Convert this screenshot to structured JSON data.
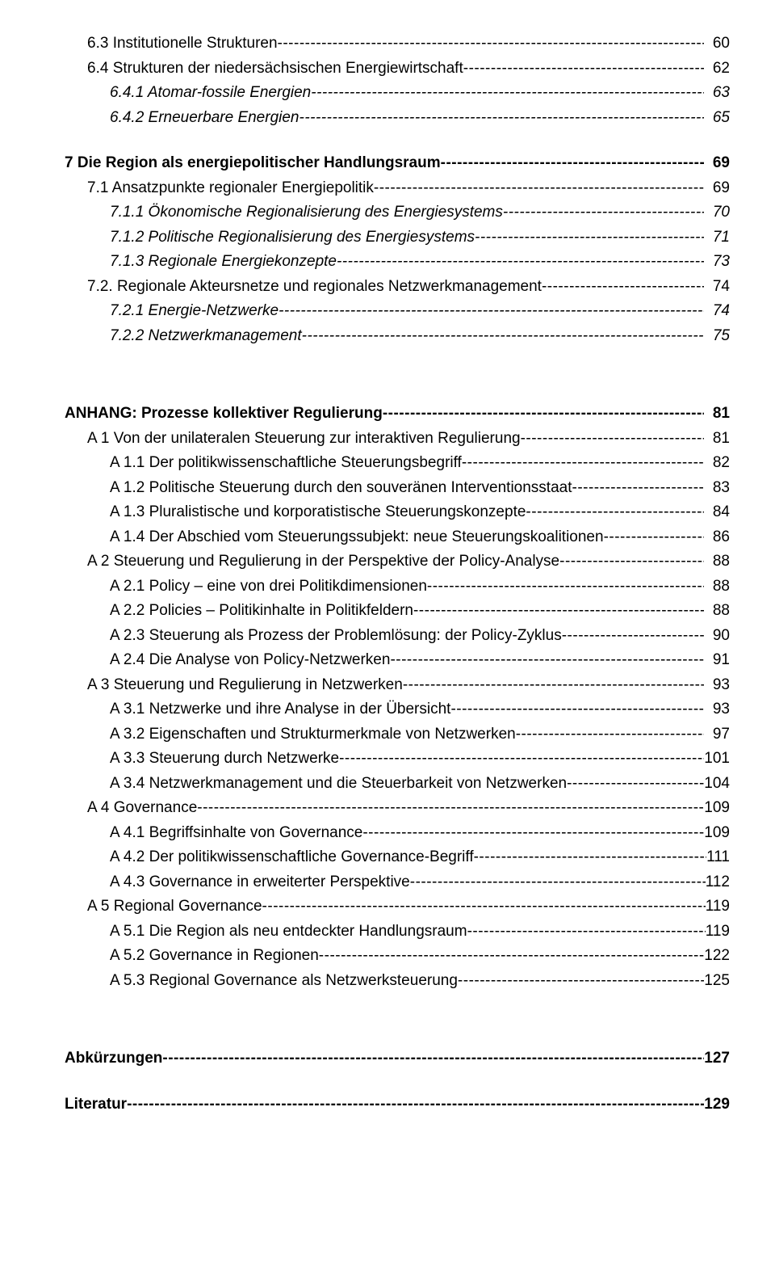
{
  "entries": [
    {
      "level": "l1",
      "style": "",
      "label": "6.3  Institutionelle Strukturen",
      "page": "60",
      "gap": ""
    },
    {
      "level": "l1",
      "style": "",
      "label": "6.4  Strukturen der niedersächsischen Energiewirtschaft",
      "page": "62",
      "gap": ""
    },
    {
      "level": "l2",
      "style": "italic",
      "label": "6.4.1 Atomar-fossile Energien",
      "page": "63",
      "gap": ""
    },
    {
      "level": "l2",
      "style": "italic",
      "label": "6.4.2 Erneuerbare Energien",
      "page": "65",
      "gap": ""
    },
    {
      "level": "l0",
      "style": "bold",
      "label": "7   Die Region als energiepolitischer Handlungsraum",
      "page": "69",
      "gap": "gap"
    },
    {
      "level": "l1",
      "style": "",
      "label": "7.1  Ansatzpunkte regionaler Energiepolitik",
      "page": "69",
      "gap": ""
    },
    {
      "level": "l2",
      "style": "italic",
      "label": "7.1.1 Ökonomische Regionalisierung des Energiesystems",
      "page": "70",
      "gap": ""
    },
    {
      "level": "l2",
      "style": "italic",
      "label": "7.1.2 Politische Regionalisierung des Energiesystems",
      "page": "71",
      "gap": ""
    },
    {
      "level": "l2",
      "style": "italic",
      "label": "7.1.3 Regionale Energiekonzepte",
      "page": "73",
      "gap": ""
    },
    {
      "level": "l1",
      "style": "",
      "label": "7.2.  Regionale Akteursnetze und regionales Netzwerkmanagement",
      "page": "74",
      "gap": ""
    },
    {
      "level": "l2",
      "style": "italic",
      "label": "7.2.1 Energie-Netzwerke",
      "page": "74",
      "gap": ""
    },
    {
      "level": "l2",
      "style": "italic",
      "label": "7.2.2 Netzwerkmanagement",
      "page": "75",
      "gap": ""
    },
    {
      "level": "l0",
      "style": "bold",
      "label": "ANHANG:  Prozesse kollektiver Regulierung",
      "page": "81",
      "gap": "big-gap"
    },
    {
      "level": "l1",
      "style": "",
      "label": "A 1  Von der unilateralen Steuerung zur interaktiven Regulierung",
      "page": "81",
      "gap": ""
    },
    {
      "level": "l2",
      "style": "",
      "label": "A 1.1  Der politikwissenschaftliche Steuerungsbegriff",
      "page": "82",
      "gap": ""
    },
    {
      "level": "l2",
      "style": "",
      "label": "A 1.2  Politische Steuerung durch den souveränen Interventionsstaat",
      "page": "83",
      "gap": ""
    },
    {
      "level": "l2",
      "style": "",
      "label": "A 1.3  Pluralistische und korporatistische Steuerungskonzepte",
      "page": "84",
      "gap": ""
    },
    {
      "level": "l2",
      "style": "",
      "label": "A 1.4  Der Abschied vom Steuerungssubjekt: neue Steuerungskoalitionen",
      "page": "86",
      "gap": ""
    },
    {
      "level": "l1",
      "style": "",
      "label": "A 2  Steuerung und Regulierung in der Perspektive der Policy-Analyse",
      "page": "88",
      "gap": ""
    },
    {
      "level": "l2",
      "style": "",
      "label": "A 2.1  Policy – eine von drei Politikdimensionen",
      "page": "88",
      "gap": ""
    },
    {
      "level": "l2",
      "style": "",
      "label": "A 2.2  Policies – Politikinhalte in Politikfeldern",
      "page": "88",
      "gap": ""
    },
    {
      "level": "l2",
      "style": "",
      "label": "A 2.3  Steuerung als Prozess der Problemlösung: der Policy-Zyklus",
      "page": "90",
      "gap": ""
    },
    {
      "level": "l2",
      "style": "",
      "label": "A 2.4  Die Analyse von Policy-Netzwerken",
      "page": "91",
      "gap": ""
    },
    {
      "level": "l1",
      "style": "",
      "label": "A 3  Steuerung und Regulierung in Netzwerken",
      "page": "93",
      "gap": ""
    },
    {
      "level": "l2",
      "style": "",
      "label": "A 3.1  Netzwerke und ihre Analyse in der Übersicht",
      "page": "93",
      "gap": ""
    },
    {
      "level": "l2",
      "style": "",
      "label": "A 3.2  Eigenschaften und Strukturmerkmale von Netzwerken",
      "page": "97",
      "gap": ""
    },
    {
      "level": "l2",
      "style": "",
      "label": "A 3.3  Steuerung durch Netzwerke",
      "page": "101",
      "gap": ""
    },
    {
      "level": "l2",
      "style": "",
      "label": "A 3.4  Netzwerkmanagement und die Steuerbarkeit von Netzwerken",
      "page": "104",
      "gap": ""
    },
    {
      "level": "l1",
      "style": "",
      "label": "A 4  Governance",
      "page": "109",
      "gap": ""
    },
    {
      "level": "l2",
      "style": "",
      "label": "A 4.1  Begriffsinhalte von Governance",
      "page": "109",
      "gap": ""
    },
    {
      "level": "l2",
      "style": "",
      "label": "A 4.2  Der politikwissenschaftliche Governance-Begriff",
      "page": "111",
      "gap": ""
    },
    {
      "level": "l2",
      "style": "",
      "label": "A 4.3  Governance in erweiterter Perspektive",
      "page": "112",
      "gap": ""
    },
    {
      "level": "l1",
      "style": "",
      "label": "A 5  Regional Governance",
      "page": "119",
      "gap": ""
    },
    {
      "level": "l2",
      "style": "",
      "label": "A 5.1  Die Region als neu entdeckter Handlungsraum",
      "page": "119",
      "gap": ""
    },
    {
      "level": "l2",
      "style": "",
      "label": "A 5.2  Governance in Regionen",
      "page": "122",
      "gap": ""
    },
    {
      "level": "l2",
      "style": "",
      "label": "A 5.3  Regional Governance als Netzwerksteuerung",
      "page": "125",
      "gap": ""
    },
    {
      "level": "l0",
      "style": "bold",
      "label": "Abkürzungen",
      "page": "127",
      "gap": "big-gap"
    },
    {
      "level": "l0",
      "style": "bold",
      "label": "Literatur",
      "page": "129",
      "gap": "gap"
    }
  ]
}
